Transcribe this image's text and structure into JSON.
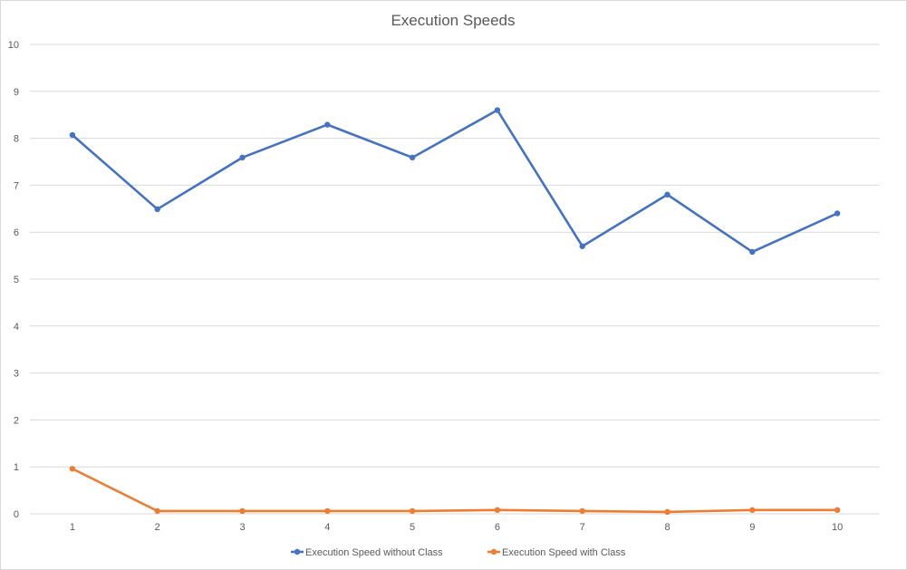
{
  "chart_data": {
    "type": "line",
    "title": "Execution Speeds",
    "xlabel": "",
    "ylabel": "",
    "x": [
      "1",
      "2",
      "3",
      "4",
      "5",
      "6",
      "7",
      "8",
      "9",
      "10"
    ],
    "yticks": [
      "0",
      "1",
      "2",
      "3",
      "4",
      "5",
      "6",
      "7",
      "8",
      "9",
      "10"
    ],
    "ylim": [
      0,
      10
    ],
    "grid": true,
    "legend_position": "bottom",
    "series": [
      {
        "name": "Execution Speed without Class",
        "color": "#4472c4",
        "values": [
          8.07,
          6.49,
          7.59,
          8.29,
          7.59,
          8.6,
          5.7,
          6.8,
          5.58,
          6.4
        ]
      },
      {
        "name": "Execution Speed with Class",
        "color": "#ed7d31",
        "values": [
          0.96,
          0.06,
          0.06,
          0.06,
          0.06,
          0.08,
          0.06,
          0.04,
          0.08,
          0.08
        ]
      }
    ]
  }
}
